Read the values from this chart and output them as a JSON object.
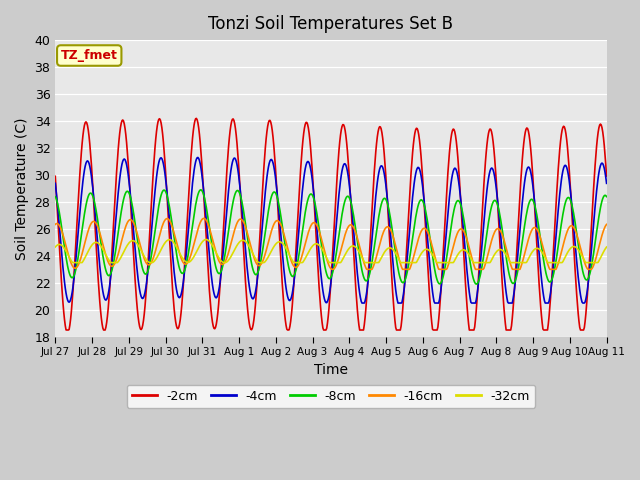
{
  "title": "Tonzi Soil Temperatures Set B",
  "xlabel": "Time",
  "ylabel": "Soil Temperature (C)",
  "ylim": [
    18,
    40
  ],
  "series_colors": {
    "-2cm": "#dd0000",
    "-4cm": "#0000cc",
    "-8cm": "#00cc00",
    "-16cm": "#ff8800",
    "-32cm": "#dddd00"
  },
  "annotation_text": "TZ_fmet",
  "annotation_color": "#cc0000",
  "annotation_bg": "#ffffcc",
  "annotation_edge": "#999900",
  "xtick_labels": [
    "Jul 27",
    "Jul 28",
    "Jul 29",
    "Jul 30",
    "Jul 31",
    "Aug 1",
    "Aug 2",
    "Aug 3",
    "Aug 4",
    "Aug 5",
    "Aug 6",
    "Aug 7",
    "Aug 8",
    "Aug 9",
    "Aug 10",
    "Aug 11"
  ],
  "ytick_labels": [
    18,
    20,
    22,
    24,
    26,
    28,
    30,
    32,
    34,
    36,
    38,
    40
  ],
  "days": 15,
  "pts_per_day": 48
}
